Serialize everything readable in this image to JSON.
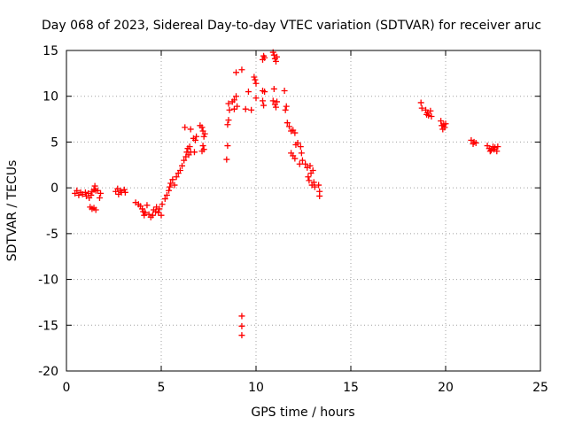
{
  "chart_data": {
    "type": "scatter",
    "title": "Day 068 of 2023, Sidereal Day-to-day VTEC variation (SDTVAR) for receiver aruc",
    "xlabel": "GPS time / hours",
    "ylabel": "SDTVAR / TECUs",
    "xlim": [
      0,
      25
    ],
    "ylim": [
      -20,
      15
    ],
    "xticks": [
      "0",
      "5",
      "10",
      "15",
      "20",
      "25"
    ],
    "yticks": [
      "-20",
      "-15",
      "-10",
      "-5",
      "0",
      "5",
      "10",
      "15"
    ],
    "grid": true,
    "marker": "+",
    "colors": {
      "series": "#ff0000",
      "axis": "#000000",
      "grid": "#a0a0a0"
    },
    "series": [
      {
        "name": "SDTVAR",
        "points": [
          [
            0.45,
            -0.6
          ],
          [
            0.55,
            -0.3
          ],
          [
            0.65,
            -0.8
          ],
          [
            0.75,
            -0.5
          ],
          [
            0.85,
            -0.7
          ],
          [
            1.0,
            -0.5
          ],
          [
            1.05,
            -0.9
          ],
          [
            1.15,
            -0.6
          ],
          [
            1.2,
            -1.1
          ],
          [
            1.3,
            -0.8
          ],
          [
            1.35,
            -0.4
          ],
          [
            1.45,
            -0.2
          ],
          [
            1.5,
            0.2
          ],
          [
            1.55,
            -0.3
          ],
          [
            1.25,
            -2.1
          ],
          [
            1.35,
            -2.3
          ],
          [
            1.45,
            -2.2
          ],
          [
            1.55,
            -2.4
          ],
          [
            1.65,
            -0.3
          ],
          [
            1.75,
            -1.1
          ],
          [
            1.8,
            -0.6
          ],
          [
            2.6,
            -0.4
          ],
          [
            2.7,
            -0.1
          ],
          [
            2.75,
            -0.7
          ],
          [
            2.85,
            -0.3
          ],
          [
            2.9,
            -0.5
          ],
          [
            3.05,
            -0.2
          ],
          [
            3.1,
            -0.5
          ],
          [
            3.65,
            -1.6
          ],
          [
            3.8,
            -1.8
          ],
          [
            3.9,
            -2.0
          ],
          [
            4.0,
            -2.3
          ],
          [
            4.05,
            -2.6
          ],
          [
            4.1,
            -3.0
          ],
          [
            4.15,
            -2.7
          ],
          [
            4.25,
            -1.9
          ],
          [
            4.35,
            -2.9
          ],
          [
            4.45,
            -3.2
          ],
          [
            4.55,
            -3.0
          ],
          [
            4.6,
            -2.4
          ],
          [
            4.7,
            -2.6
          ],
          [
            4.75,
            -2.1
          ],
          [
            4.85,
            -2.7
          ],
          [
            4.9,
            -2.3
          ],
          [
            5.0,
            -3.0
          ],
          [
            5.05,
            -1.8
          ],
          [
            5.2,
            -1.2
          ],
          [
            5.3,
            -0.8
          ],
          [
            5.4,
            -0.3
          ],
          [
            5.45,
            0.1
          ],
          [
            5.5,
            0.5
          ],
          [
            5.6,
            0.9
          ],
          [
            5.7,
            0.3
          ],
          [
            5.8,
            1.2
          ],
          [
            5.9,
            1.6
          ],
          [
            6.0,
            1.9
          ],
          [
            6.1,
            2.4
          ],
          [
            6.2,
            3.0
          ],
          [
            6.3,
            3.4
          ],
          [
            6.35,
            3.9
          ],
          [
            6.4,
            4.3
          ],
          [
            6.45,
            3.6
          ],
          [
            6.5,
            4.5
          ],
          [
            6.55,
            3.9
          ],
          [
            6.25,
            6.6
          ],
          [
            6.55,
            6.4
          ],
          [
            6.7,
            5.4
          ],
          [
            6.8,
            5.2
          ],
          [
            6.75,
            3.9
          ],
          [
            6.85,
            5.6
          ],
          [
            7.05,
            6.8
          ],
          [
            7.15,
            6.6
          ],
          [
            7.2,
            6.2
          ],
          [
            7.25,
            5.6
          ],
          [
            7.2,
            4.6
          ],
          [
            7.25,
            4.2
          ],
          [
            7.3,
            5.9
          ],
          [
            7.15,
            4.0
          ],
          [
            8.45,
            3.1
          ],
          [
            8.5,
            4.6
          ],
          [
            8.5,
            6.9
          ],
          [
            8.55,
            7.4
          ],
          [
            8.6,
            8.5
          ],
          [
            8.55,
            9.2
          ],
          [
            8.75,
            9.4
          ],
          [
            8.85,
            9.6
          ],
          [
            8.95,
            10.0
          ],
          [
            8.85,
            8.6
          ],
          [
            9.0,
            8.9
          ],
          [
            8.95,
            12.6
          ],
          [
            9.25,
            12.9
          ],
          [
            9.25,
            -14.0
          ],
          [
            9.25,
            -15.1
          ],
          [
            9.25,
            -16.1
          ],
          [
            9.45,
            8.6
          ],
          [
            9.6,
            10.5
          ],
          [
            9.75,
            8.5
          ],
          [
            9.9,
            12.1
          ],
          [
            9.95,
            11.8
          ],
          [
            10.0,
            11.4
          ],
          [
            10.0,
            9.8
          ],
          [
            10.35,
            14.0
          ],
          [
            10.4,
            14.4
          ],
          [
            10.45,
            14.2
          ],
          [
            10.35,
            10.6
          ],
          [
            10.45,
            10.5
          ],
          [
            10.35,
            9.5
          ],
          [
            10.4,
            9.0
          ],
          [
            10.9,
            14.8
          ],
          [
            10.95,
            14.5
          ],
          [
            11.0,
            14.1
          ],
          [
            11.05,
            13.8
          ],
          [
            11.1,
            14.3
          ],
          [
            10.95,
            10.8
          ],
          [
            10.9,
            9.5
          ],
          [
            11.0,
            9.1
          ],
          [
            11.05,
            8.8
          ],
          [
            11.1,
            9.4
          ],
          [
            11.5,
            10.6
          ],
          [
            11.6,
            8.9
          ],
          [
            11.55,
            8.5
          ],
          [
            11.65,
            7.1
          ],
          [
            11.75,
            6.7
          ],
          [
            11.85,
            6.2
          ],
          [
            11.95,
            6.3
          ],
          [
            12.05,
            6.0
          ],
          [
            11.85,
            3.8
          ],
          [
            11.95,
            3.5
          ],
          [
            12.05,
            3.2
          ],
          [
            12.1,
            4.7
          ],
          [
            12.2,
            4.9
          ],
          [
            12.35,
            4.5
          ],
          [
            12.4,
            3.8
          ],
          [
            12.45,
            3.0
          ],
          [
            12.3,
            2.6
          ],
          [
            12.6,
            2.6
          ],
          [
            12.7,
            2.2
          ],
          [
            12.75,
            1.2
          ],
          [
            12.8,
            0.8
          ],
          [
            12.9,
            1.6
          ],
          [
            13.0,
            1.9
          ],
          [
            12.95,
            0.3
          ],
          [
            13.05,
            0.6
          ],
          [
            13.1,
            0.1
          ],
          [
            12.85,
            2.4
          ],
          [
            13.3,
            0.3
          ],
          [
            13.35,
            -0.4
          ],
          [
            13.35,
            -0.9
          ],
          [
            18.7,
            9.3
          ],
          [
            18.75,
            8.7
          ],
          [
            18.95,
            8.5
          ],
          [
            19.05,
            8.2
          ],
          [
            19.1,
            7.9
          ],
          [
            19.2,
            8.4
          ],
          [
            19.25,
            7.8
          ],
          [
            19.0,
            8.0
          ],
          [
            19.75,
            7.3
          ],
          [
            19.8,
            6.8
          ],
          [
            19.85,
            6.4
          ],
          [
            19.9,
            6.9
          ],
          [
            19.95,
            6.6
          ],
          [
            20.0,
            7.0
          ],
          [
            21.35,
            5.2
          ],
          [
            21.5,
            5.0
          ],
          [
            21.6,
            4.9
          ],
          [
            21.45,
            4.8
          ],
          [
            22.2,
            4.6
          ],
          [
            22.3,
            4.3
          ],
          [
            22.4,
            4.1
          ],
          [
            22.5,
            4.5
          ],
          [
            22.55,
            4.2
          ],
          [
            22.6,
            4.4
          ],
          [
            22.7,
            4.0
          ],
          [
            22.75,
            4.5
          ],
          [
            22.35,
            4.0
          ]
        ]
      }
    ]
  }
}
